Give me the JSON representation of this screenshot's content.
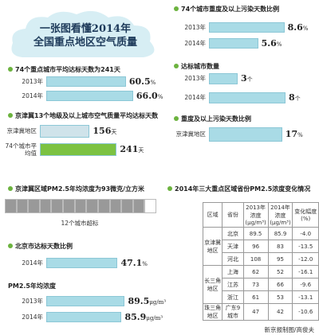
{
  "title": {
    "line1": "一张图看懂2014年",
    "line2": "全国重点地区空气质量"
  },
  "sections": [
    {
      "title": "74个城市重度及以上污染天数比例",
      "rows": [
        {
          "label": "2013年",
          "value": 8.6,
          "unit": "%",
          "color": "#a9dbe6"
        },
        {
          "label": "2014年",
          "value": 5.6,
          "unit": "%",
          "color": "#a9dbe6"
        }
      ]
    },
    {
      "title": "74个重点城市平均达标天数为241天",
      "rows": [
        {
          "label": "2013年",
          "value": 60.5,
          "unit": "%",
          "color": "#a9dbe6"
        },
        {
          "label": "2014年",
          "value": 66.0,
          "value_label": "66.0",
          "unit": "%",
          "color": "#a9dbe6"
        }
      ]
    },
    {
      "title": "达标城市数量",
      "rows": [
        {
          "label": "2013年",
          "value": 3,
          "unit": "个",
          "color": "#a9dbe6"
        },
        {
          "label": "2014年",
          "value": 8,
          "unit": "个",
          "color": "#a9dbe6"
        }
      ]
    },
    {
      "title": "京津冀13个地级及以上城市空气质量平均达标天数",
      "rows": [
        {
          "label": "京津冀地区",
          "value": 156,
          "unit": "天",
          "color": "#cfe3ea"
        },
        {
          "label": "74个城市平均值",
          "value": 241,
          "unit": "天",
          "color": "#7cc242"
        }
      ]
    },
    {
      "title": "重度及以上污染天数比例",
      "rows": [
        {
          "label": "京津冀地区",
          "value": 17,
          "unit": "%",
          "color": "#a9dbe6"
        }
      ]
    },
    {
      "title": "北京市达标天数比例",
      "rows": [
        {
          "label": "2014年",
          "value": 47.1,
          "unit": "%",
          "color": "#a9dbe6"
        }
      ]
    },
    {
      "title": "PM2.5年均浓度",
      "rows": [
        {
          "label": "2013年",
          "value": 89.5,
          "unit": "μg/m³",
          "color": "#a9dbe6"
        },
        {
          "label": "2014年",
          "value": 85.9,
          "unit": "μg/m³",
          "color": "#a9dbe6"
        }
      ]
    }
  ],
  "pm25": {
    "title": "京津冀区域PM2.5年均浓度为93微克/立方米",
    "exceeding": 12,
    "caption": "12个城市超标"
  },
  "table": {
    "title": "2014年三大重点区域省份PM2.5浓度变化情况",
    "header": [
      "区域",
      "省份",
      "2013年浓度(μg/m³)",
      "2014年浓度(μg/m³)",
      "变化幅度(%)"
    ],
    "groups": [
      {
        "region": "京津冀地区",
        "rows": [
          [
            "北京",
            "89.5",
            "85.9",
            "-4.0"
          ],
          [
            "天津",
            "96",
            "83",
            "-13.5"
          ],
          [
            "河北",
            "108",
            "95",
            "-12.0"
          ]
        ]
      },
      {
        "region": "长三角地区",
        "rows": [
          [
            "上海",
            "62",
            "52",
            "-16.1"
          ],
          [
            "江苏",
            "73",
            "66",
            "-9.6"
          ],
          [
            "浙江",
            "61",
            "53",
            "-13.1"
          ]
        ]
      },
      {
        "region": "珠三角地区",
        "rows": [
          [
            "广东9城市",
            "47",
            "42",
            "-10.6"
          ]
        ]
      }
    ]
  },
  "footer": "新京报制图/高俊夫"
}
